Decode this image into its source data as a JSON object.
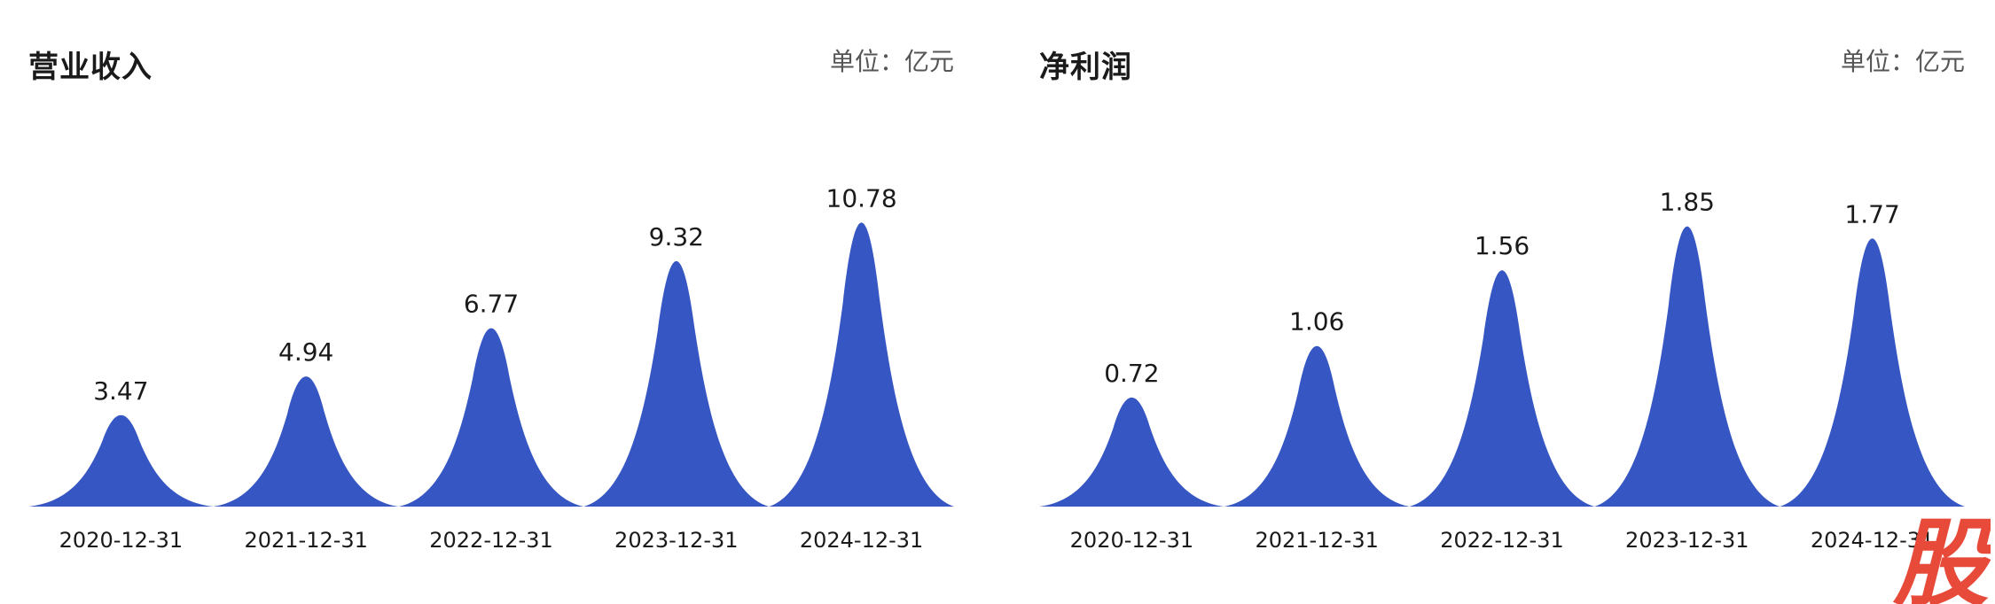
{
  "unit_label": "单位：亿元",
  "chart_data": [
    {
      "type": "area",
      "title": "营业收入",
      "categories": [
        "2020-12-31",
        "2021-12-31",
        "2022-12-31",
        "2023-12-31",
        "2024-12-31"
      ],
      "values": [
        3.47,
        4.94,
        6.77,
        9.32,
        10.78
      ],
      "value_labels": [
        "3.47",
        "4.94",
        "6.77",
        "9.32",
        "10.78"
      ],
      "color": "#3657c3",
      "ylim": [
        0,
        11.5
      ],
      "grid": false,
      "legend": "none"
    },
    {
      "type": "area",
      "title": "净利润",
      "categories": [
        "2020-12-31",
        "2021-12-31",
        "2022-12-31",
        "2023-12-31",
        "2024-12-31"
      ],
      "values": [
        0.72,
        1.06,
        1.56,
        1.85,
        1.77
      ],
      "value_labels": [
        "0.72",
        "1.06",
        "1.56",
        "1.85",
        "1.77"
      ],
      "color": "#3657c3",
      "ylim": [
        0,
        2.0
      ],
      "grid": false,
      "legend": "none"
    }
  ],
  "watermark": {
    "text": "股",
    "color": "#e84a3a"
  }
}
